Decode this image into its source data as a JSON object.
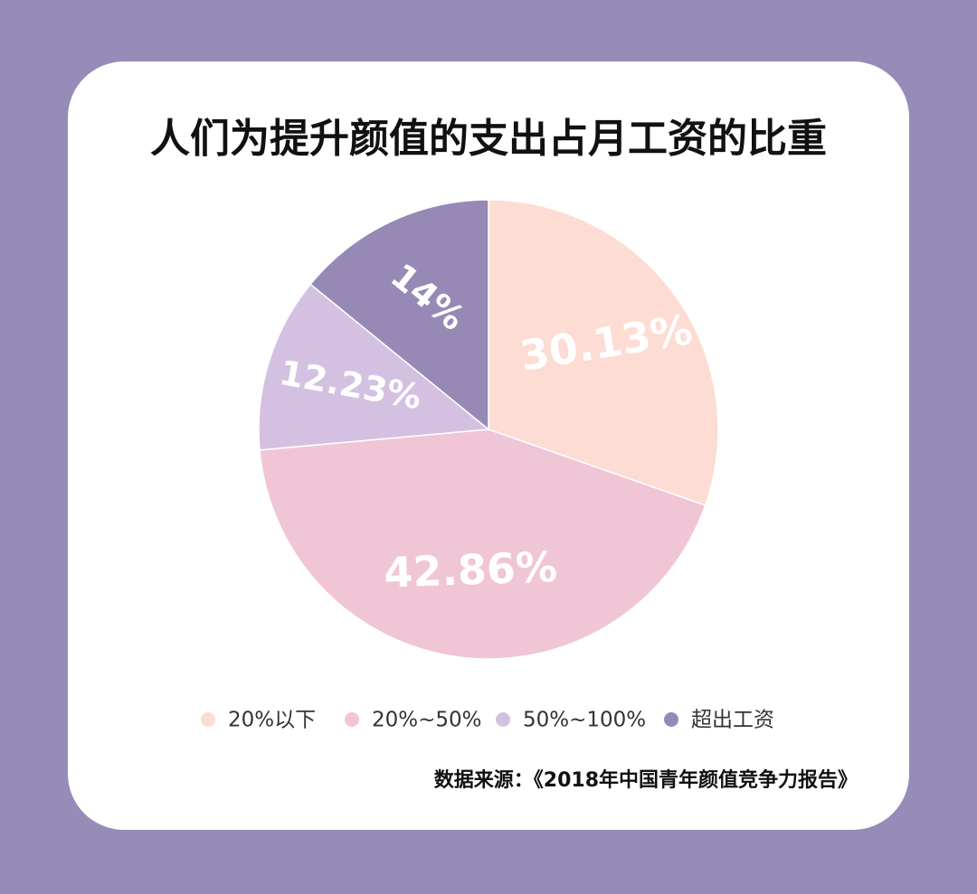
{
  "chart_data": {
    "type": "pie",
    "title": "人们为提升颜值的支出占月工资的比重",
    "categories": [
      "20%以下",
      "20%~50%",
      "50%~100%",
      "超出工资"
    ],
    "values": [
      30.13,
      42.86,
      12.23,
      14
    ],
    "value_labels": [
      "30.13%",
      "42.86%",
      "12.23%",
      "14%"
    ],
    "colors": [
      "#fcdcd3",
      "#f0c5d6",
      "#d4c1e1",
      "#9789b5"
    ],
    "source": "数据来源：《2018年中国青年颜值竞争力报告》"
  }
}
